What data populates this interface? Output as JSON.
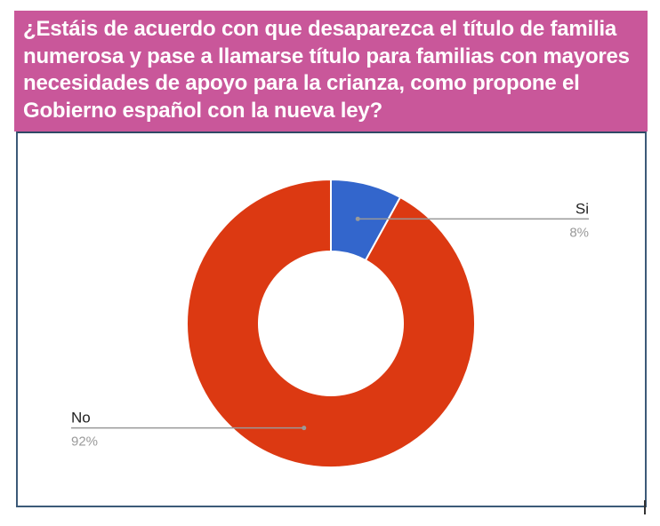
{
  "title": "¿Estáis de acuerdo con que desaparezca el título de familia numerosa y pase a llamarse título para familias con mayores necesidades de apoyo para la crianza, como propone el Gobierno español con la nueva ley?",
  "chart_data": {
    "type": "pie",
    "donut": true,
    "slices": [
      {
        "label": "Si",
        "value": 8,
        "value_label": "8%",
        "color": "#3366cc"
      },
      {
        "label": "No",
        "value": 92,
        "value_label": "92%",
        "color": "#dc3912"
      }
    ],
    "legend": "none"
  },
  "colors": {
    "banner": "#c9579a",
    "frame_border": "#3c5a78"
  }
}
